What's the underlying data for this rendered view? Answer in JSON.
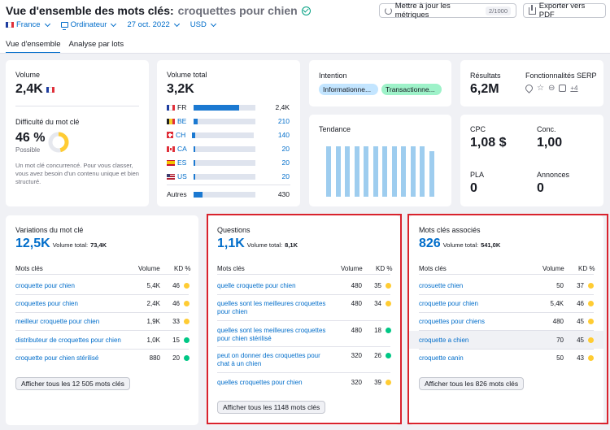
{
  "header": {
    "title": "Vue d'ensemble des mots clés:",
    "keyword": "croquettes pour chien",
    "filters": {
      "country": "France",
      "device": "Ordinateur",
      "date": "27 oct. 2022",
      "currency": "USD"
    },
    "update_button": "Mettre à jour les métriques",
    "update_count": "2/1000",
    "export_button": "Exporter vers PDF",
    "tabs": [
      "Vue d'ensemble",
      "Analyse par lots"
    ]
  },
  "volume": {
    "label": "Volume",
    "value": "2,4K"
  },
  "difficulty": {
    "label": "Difficulté du mot clé",
    "value": "46 %",
    "level": "Possible",
    "percent": 46,
    "description": "Un mot clé concurrencé. Pour vous classer, vous avez besoin d'un contenu unique et bien structuré."
  },
  "total_volume": {
    "label": "Volume total",
    "value": "3,2K",
    "countries": [
      {
        "code": "FR",
        "value": "2,4K",
        "share": 0.74,
        "link": false
      },
      {
        "code": "BE",
        "value": "210",
        "share": 0.07,
        "link": true
      },
      {
        "code": "CH",
        "value": "140",
        "share": 0.05,
        "link": true
      },
      {
        "code": "CA",
        "value": "20",
        "share": 0.02,
        "link": true
      },
      {
        "code": "ES",
        "value": "20",
        "share": 0.02,
        "link": true
      },
      {
        "code": "US",
        "value": "20",
        "share": 0.02,
        "link": true
      }
    ],
    "others_label": "Autres",
    "others_value": "430",
    "others_share": 0.14
  },
  "intent": {
    "label": "Intention",
    "badges": [
      "Informationne...",
      "Transactionne..."
    ]
  },
  "results": {
    "label": "Résultats",
    "value": "6,2M"
  },
  "serp": {
    "label": "Fonctionnalités SERP",
    "extra": "+4"
  },
  "trend": {
    "label": "Tendance",
    "bars": [
      0.92,
      0.92,
      0.92,
      0.92,
      0.92,
      0.92,
      0.92,
      0.92,
      0.92,
      0.92,
      0.92,
      0.83
    ]
  },
  "cpc": {
    "label": "CPC",
    "value": "1,08 $"
  },
  "competition": {
    "label": "Conc.",
    "value": "1,00"
  },
  "pla": {
    "label": "PLA",
    "value": "0"
  },
  "ads": {
    "label": "Annonces",
    "value": "0"
  },
  "variations": {
    "title": "Variations du mot clé",
    "count": "12,5K",
    "total_label": "Volume total:",
    "total": "73,4K",
    "col_keyword": "Mots clés",
    "col_volume": "Volume",
    "col_kd": "KD %",
    "rows": [
      {
        "keyword": "croquette pour chien",
        "volume": "5,4K",
        "kd": "46",
        "color": "#ffcc33"
      },
      {
        "keyword": "croquettes pour chien",
        "volume": "2,4K",
        "kd": "46",
        "color": "#ffcc33"
      },
      {
        "keyword": "meilleur croquette pour chien",
        "volume": "1,9K",
        "kd": "33",
        "color": "#ffcc33"
      },
      {
        "keyword": "distributeur de croquettes pour chien",
        "volume": "1,0K",
        "kd": "15",
        "color": "#00c785"
      },
      {
        "keyword": "croquette pour chien stérilisé",
        "volume": "880",
        "kd": "20",
        "color": "#00c785"
      }
    ],
    "button": "Afficher tous les 12 505 mots clés"
  },
  "questions": {
    "title": "Questions",
    "count": "1,1K",
    "total_label": "Volume total:",
    "total": "8,1K",
    "col_keyword": "Mots clés",
    "col_volume": "Volume",
    "col_kd": "KD %",
    "rows": [
      {
        "keyword": "quelle croquette pour chien",
        "volume": "480",
        "kd": "35",
        "color": "#ffcc33"
      },
      {
        "keyword": "quelles sont les meilleures croquettes pour chien",
        "volume": "480",
        "kd": "34",
        "color": "#ffcc33"
      },
      {
        "keyword": "quelles sont les meilleures croquettes pour chien stérilisé",
        "volume": "480",
        "kd": "18",
        "color": "#00c785"
      },
      {
        "keyword": "peut on donner des croquettes pour chat à un chien",
        "volume": "320",
        "kd": "26",
        "color": "#00c785"
      },
      {
        "keyword": "quelles croquettes pour chien",
        "volume": "320",
        "kd": "39",
        "color": "#ffcc33"
      }
    ],
    "button": "Afficher tous les 1148 mots clés"
  },
  "related": {
    "title": "Mots clés associés",
    "count": "826",
    "total_label": "Volume total:",
    "total": "541,0K",
    "col_keyword": "Mots clés",
    "col_volume": "Volume",
    "col_kd": "KD %",
    "rows": [
      {
        "keyword": "crosuette chien",
        "volume": "50",
        "kd": "37",
        "color": "#ffcc33"
      },
      {
        "keyword": "croquette pour chien",
        "volume": "5,4K",
        "kd": "46",
        "color": "#ffcc33"
      },
      {
        "keyword": "croquettes pour chiens",
        "volume": "480",
        "kd": "45",
        "color": "#ffcc33"
      },
      {
        "keyword": "croquette a chien",
        "volume": "70",
        "kd": "45",
        "color": "#ffcc33"
      },
      {
        "keyword": "croquette canin",
        "volume": "50",
        "kd": "43",
        "color": "#ffcc33"
      }
    ],
    "button": "Afficher tous les 826 mots clés"
  }
}
